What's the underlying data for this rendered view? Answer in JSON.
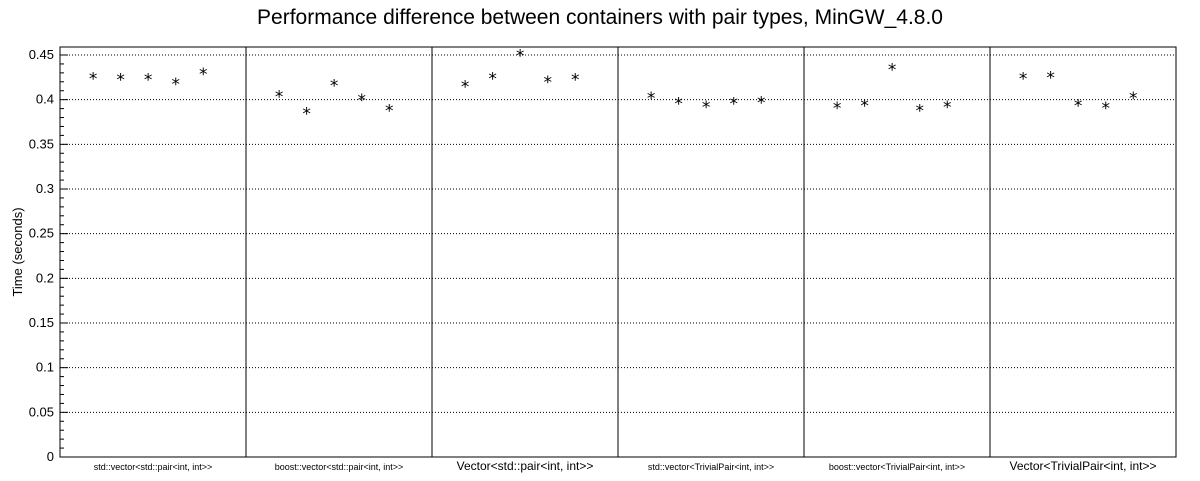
{
  "chart_data": {
    "type": "scatter",
    "title": "Performance difference between containers with pair types, MinGW_4.8.0",
    "xlabel": "",
    "ylabel": "Time (seconds)",
    "ylim": [
      0,
      0.46
    ],
    "yticks": [
      "0",
      "0.05",
      "0.1",
      "0.15",
      "0.2",
      "0.25",
      "0.3",
      "0.35",
      "0.4",
      "0.45"
    ],
    "grid": true,
    "marker": "*",
    "categories": [
      "std::vector<std::pair<int, int>>",
      "boost::vector<std::pair<int, int>>",
      "Vector<std::pair<int, int>>",
      "std::vector<TrivialPair<int, int>>",
      "boost::vector<TrivialPair<int, int>>",
      "Vector<TrivialPair<int, int>>"
    ],
    "values": [
      [
        0.427,
        0.426,
        0.426,
        0.421,
        0.432
      ],
      [
        0.407,
        0.388,
        0.419,
        0.403,
        0.391
      ],
      [
        0.418,
        0.427,
        0.453,
        0.423,
        0.426
      ],
      [
        0.405,
        0.399,
        0.395,
        0.399,
        0.4
      ],
      [
        0.394,
        0.397,
        0.437,
        0.391,
        0.395
      ],
      [
        0.427,
        0.428,
        0.397,
        0.394,
        0.405
      ]
    ]
  }
}
